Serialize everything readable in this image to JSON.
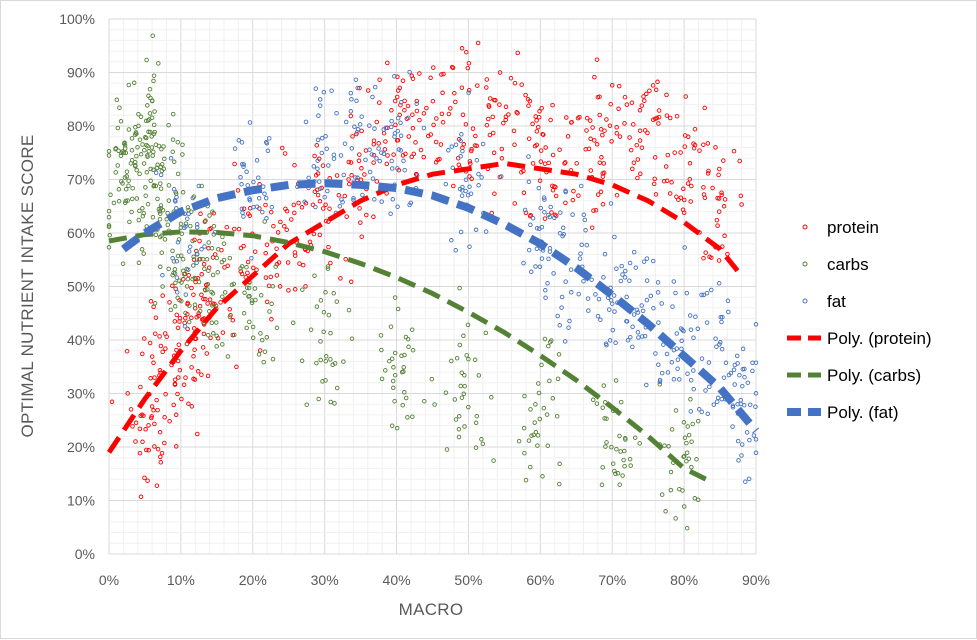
{
  "chart_data": {
    "type": "scatter",
    "xlabel": "MACRO",
    "ylabel": "OPTIMAL NUTRIENT INTAKE SCORE",
    "xlim": [
      0,
      0.9
    ],
    "ylim": [
      0,
      1.0
    ],
    "x_ticks": [
      "0%",
      "10%",
      "20%",
      "30%",
      "40%",
      "50%",
      "60%",
      "70%",
      "80%",
      "90%"
    ],
    "y_ticks": [
      "0%",
      "10%",
      "20%",
      "30%",
      "40%",
      "50%",
      "60%",
      "70%",
      "80%",
      "90%",
      "100%"
    ],
    "grid": "major and minor",
    "legend_position": "right",
    "series": [
      {
        "name": "protein",
        "kind": "scatter",
        "color": "#ff0000",
        "x_range": [
          0.0,
          0.88
        ],
        "samples": [
          [
            0.05,
            0.22
          ],
          [
            0.08,
            0.35
          ],
          [
            0.1,
            0.4
          ],
          [
            0.12,
            0.45
          ],
          [
            0.15,
            0.5
          ],
          [
            0.2,
            0.55
          ],
          [
            0.25,
            0.6
          ],
          [
            0.3,
            0.65
          ],
          [
            0.35,
            0.72
          ],
          [
            0.4,
            0.78
          ],
          [
            0.45,
            0.8
          ],
          [
            0.5,
            0.82
          ],
          [
            0.55,
            0.8
          ],
          [
            0.6,
            0.75
          ],
          [
            0.65,
            0.72
          ],
          [
            0.7,
            0.8
          ],
          [
            0.75,
            0.78
          ],
          [
            0.8,
            0.72
          ],
          [
            0.85,
            0.65
          ]
        ]
      },
      {
        "name": "carbs",
        "kind": "scatter",
        "color": "#548235",
        "x_range": [
          0.0,
          0.85
        ],
        "samples": [
          [
            0.02,
            0.7
          ],
          [
            0.03,
            0.75
          ],
          [
            0.05,
            0.72
          ],
          [
            0.06,
            0.8
          ],
          [
            0.08,
            0.65
          ],
          [
            0.1,
            0.6
          ],
          [
            0.12,
            0.55
          ],
          [
            0.15,
            0.5
          ],
          [
            0.2,
            0.45
          ],
          [
            0.3,
            0.4
          ],
          [
            0.4,
            0.35
          ],
          [
            0.5,
            0.3
          ],
          [
            0.6,
            0.28
          ],
          [
            0.7,
            0.22
          ],
          [
            0.8,
            0.18
          ]
        ]
      },
      {
        "name": "fat",
        "kind": "scatter",
        "color": "#4472c4",
        "x_range": [
          0.02,
          0.9
        ],
        "samples": [
          [
            0.1,
            0.6
          ],
          [
            0.2,
            0.7
          ],
          [
            0.3,
            0.75
          ],
          [
            0.35,
            0.78
          ],
          [
            0.4,
            0.75
          ],
          [
            0.5,
            0.7
          ],
          [
            0.6,
            0.6
          ],
          [
            0.65,
            0.55
          ],
          [
            0.7,
            0.5
          ],
          [
            0.75,
            0.45
          ],
          [
            0.8,
            0.4
          ],
          [
            0.85,
            0.35
          ],
          [
            0.88,
            0.28
          ]
        ]
      },
      {
        "name": "Poly. (protein)",
        "kind": "trendline",
        "color": "#ff0000",
        "x": [
          0.0,
          0.05,
          0.1,
          0.15,
          0.2,
          0.25,
          0.3,
          0.35,
          0.4,
          0.45,
          0.5,
          0.55,
          0.6,
          0.65,
          0.7,
          0.75,
          0.8,
          0.85,
          0.88
        ],
        "y": [
          0.19,
          0.29,
          0.38,
          0.46,
          0.52,
          0.58,
          0.62,
          0.66,
          0.69,
          0.71,
          0.72,
          0.73,
          0.72,
          0.71,
          0.69,
          0.66,
          0.62,
          0.57,
          0.52
        ]
      },
      {
        "name": "Poly. (carbs)",
        "kind": "trendline",
        "color": "#548235",
        "x": [
          0.0,
          0.05,
          0.1,
          0.15,
          0.2,
          0.25,
          0.3,
          0.35,
          0.4,
          0.45,
          0.5,
          0.55,
          0.6,
          0.65,
          0.7,
          0.75,
          0.8,
          0.83
        ],
        "y": [
          0.585,
          0.597,
          0.602,
          0.601,
          0.595,
          0.582,
          0.565,
          0.543,
          0.517,
          0.487,
          0.452,
          0.414,
          0.371,
          0.325,
          0.274,
          0.22,
          0.16,
          0.14
        ]
      },
      {
        "name": "Poly. (fat)",
        "kind": "trendline",
        "color": "#4472c4",
        "x": [
          0.02,
          0.05,
          0.1,
          0.15,
          0.2,
          0.25,
          0.3,
          0.35,
          0.4,
          0.45,
          0.5,
          0.55,
          0.6,
          0.65,
          0.7,
          0.75,
          0.8,
          0.85,
          0.9
        ],
        "y": [
          0.57,
          0.6,
          0.64,
          0.665,
          0.68,
          0.69,
          0.693,
          0.69,
          0.684,
          0.67,
          0.647,
          0.616,
          0.58,
          0.535,
          0.484,
          0.43,
          0.37,
          0.31,
          0.23
        ]
      }
    ]
  }
}
